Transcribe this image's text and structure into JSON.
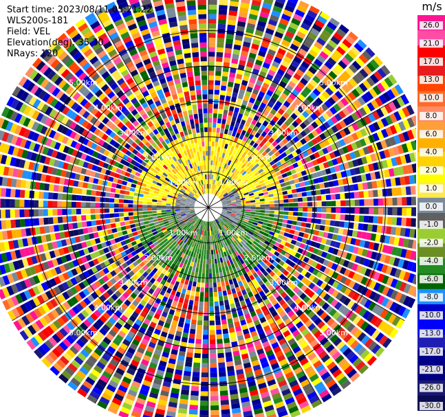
{
  "header": {
    "start_time": "Start time: 2023/08/11 05:21:22",
    "instrument": "WLS200s-181",
    "field": "Field: VEL",
    "elevation": "Elevation(deg): 35.30",
    "nrays": "NRays: 120"
  },
  "chart_data": {
    "type": "heatmap",
    "subtype": "polar-ppi",
    "field": "VEL",
    "units": "m/s",
    "nrays": 120,
    "elevation_deg": 35.3,
    "range_rings_km": [
      1.0,
      2.0,
      3.0,
      4.0,
      5.0
    ],
    "ring_label_text": {
      "1": "1.00km",
      "2": "2.00km",
      "3": "3.00km",
      "4": "4.00km",
      "5": "5.00km"
    },
    "max_range_km": 6.4,
    "colorbar": {
      "title": "m/s",
      "ticks": [
        "26.0",
        "21.0",
        "17.0",
        "13.0",
        "10.0",
        "8.0",
        "6.0",
        "4.0",
        "2.0",
        "1.0",
        "0.0",
        "-1.0",
        "-2.0",
        "-4.0",
        "-6.0",
        "-8.0",
        "-10.0",
        "-13.0",
        "-17.0",
        "-21.0",
        "-26.0",
        "-30.0"
      ],
      "colors": [
        "#ff1493",
        "#ff4da6",
        "#ff0000",
        "#e81c1c",
        "#ff4500",
        "#ff6a2a",
        "#ff8c66",
        "#ff9f3a",
        "#ffb000",
        "#ffd200",
        "#ffff00",
        "#ffe84d",
        "#7a8a9a",
        "#606060",
        "#9acd32",
        "#6b8e23",
        "#228b22",
        "#006400",
        "#1e90ff",
        "#0000cd",
        "#0000ff",
        "#1e1eb4",
        "#00008b",
        "#000080",
        "#191970",
        "#0b0b55"
      ]
    },
    "scene": {
      "north": "mostly positive velocities (yellow / orange, about 1 to 4 m/s)",
      "south": "mostly negative velocities (green, about -4 to -8 m/s)",
      "near_zero_band": "gray",
      "beyond_2km": "noisy, all colours"
    }
  }
}
